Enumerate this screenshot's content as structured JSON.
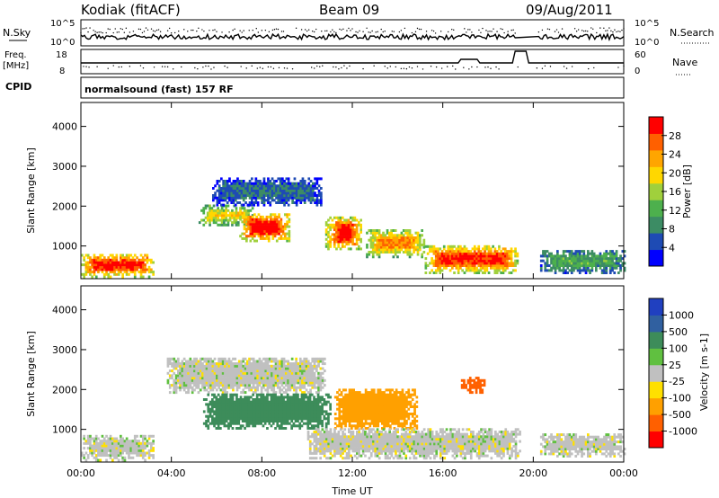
{
  "header": {
    "station": "Kodiak (fitACF)",
    "beam": "Beam 09",
    "date": "09/Aug/2011"
  },
  "summary_panels": {
    "nsky_label": "N.Sky",
    "nsky_ticks": [
      "10^5",
      "10^0"
    ],
    "nsearch_label": "N.Search",
    "nsearch_ticks": [
      "10^5",
      "10^0"
    ],
    "freq_label": "Freq.",
    "freq_unit": "[MHz]",
    "freq_ticks": [
      "18",
      "8"
    ],
    "nave_label": "Nave",
    "nave_ticks": [
      "60",
      "0"
    ],
    "cpid_label": "CPID",
    "cpid_text": "normalsound (fast) 157 RF"
  },
  "colors": {
    "power_scale": [
      "#0000ff",
      "#1e4bb4",
      "#3c8c64",
      "#4db04d",
      "#a0d03c",
      "#ffd700",
      "#ffa500",
      "#ff6000",
      "#ff0000"
    ],
    "velocity_scale": [
      "#2040c0",
      "#3060a0",
      "#3d8c5a",
      "#60c040",
      "#c0c0c0",
      "#ffe000",
      "#ffa000",
      "#ff6000",
      "#ff0000"
    ],
    "ground_scatter": "#c0c0c0"
  },
  "chart_data": [
    {
      "type": "heatmap",
      "name": "Power",
      "xlabel": "",
      "ylabel": "Slant Range [km]",
      "xlim": [
        "00:00",
        "24:00"
      ],
      "ylim": [
        180,
        4600
      ],
      "x_ticks": [
        "00:00",
        "04:00",
        "08:00",
        "12:00",
        "16:00",
        "20:00",
        "00:00"
      ],
      "y_ticks": [
        1000,
        2000,
        3000,
        4000
      ],
      "colorbar": {
        "label": "Power [dB]",
        "ticks": [
          "28",
          "24",
          "20",
          "16",
          "12",
          "8",
          "4"
        ],
        "range": [
          0,
          30
        ]
      },
      "regions": [
        {
          "t0": 0.0,
          "t1": 3.2,
          "r0": 200,
          "r1": 800,
          "value": 26
        },
        {
          "t0": 5.2,
          "t1": 7.6,
          "r0": 1500,
          "r1": 2000,
          "value": 18
        },
        {
          "t0": 7.0,
          "t1": 9.2,
          "r0": 1100,
          "r1": 1800,
          "value": 27
        },
        {
          "t0": 10.8,
          "t1": 12.4,
          "r0": 900,
          "r1": 1700,
          "value": 26
        },
        {
          "t0": 12.6,
          "t1": 15.2,
          "r0": 700,
          "r1": 1400,
          "value": 20
        },
        {
          "t0": 15.2,
          "t1": 19.3,
          "r0": 300,
          "r1": 1000,
          "value": 24
        },
        {
          "t0": 20.3,
          "t1": 24.0,
          "r0": 300,
          "r1": 900,
          "value": 10
        },
        {
          "t0": 5.8,
          "t1": 10.6,
          "r0": 2000,
          "r1": 2700,
          "value": 6
        }
      ]
    },
    {
      "type": "heatmap",
      "name": "Velocity",
      "xlabel": "Time UT",
      "ylabel": "Slant Range [km]",
      "xlim": [
        "00:00",
        "24:00"
      ],
      "ylim": [
        180,
        4600
      ],
      "x_ticks": [
        "00:00",
        "04:00",
        "08:00",
        "12:00",
        "16:00",
        "20:00",
        "00:00"
      ],
      "y_ticks": [
        1000,
        2000,
        3000,
        4000
      ],
      "colorbar": {
        "label": "Velocity [m s-1]",
        "ticks": [
          "1000",
          "500",
          "100",
          "25",
          "-25",
          "-100",
          "-500",
          "-1000"
        ],
        "range": [
          -1000,
          1000
        ]
      },
      "regions": [
        {
          "t0": 0.0,
          "t1": 3.2,
          "r0": 200,
          "r1": 850,
          "value": 0
        },
        {
          "t0": 3.8,
          "t1": 10.8,
          "r0": 1900,
          "r1": 2800,
          "value": 0
        },
        {
          "t0": 5.4,
          "t1": 11.0,
          "r0": 1000,
          "r1": 1900,
          "value": 150
        },
        {
          "t0": 11.2,
          "t1": 14.8,
          "r0": 1000,
          "r1": 2000,
          "value": -200
        },
        {
          "t0": 10.0,
          "t1": 19.4,
          "r0": 250,
          "r1": 1000,
          "value": 0
        },
        {
          "t0": 20.3,
          "t1": 24.0,
          "r0": 300,
          "r1": 900,
          "value": 0
        },
        {
          "t0": 16.8,
          "t1": 17.8,
          "r0": 1900,
          "r1": 2300,
          "value": -300
        }
      ]
    }
  ]
}
